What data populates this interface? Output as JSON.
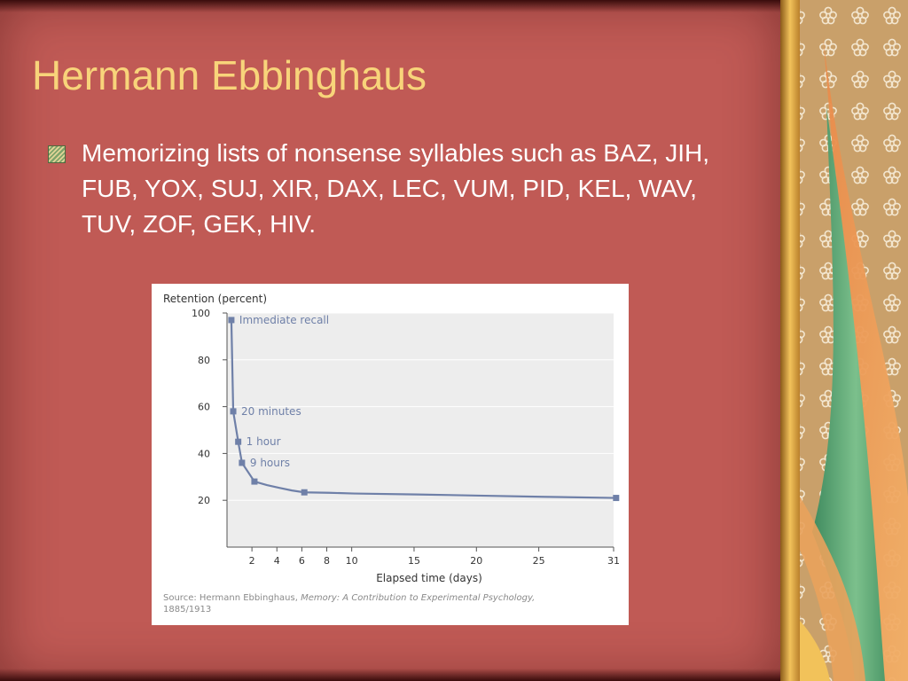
{
  "slide": {
    "title": "Hermann Ebbinghaus",
    "bullet": "Memorizing lists of nonsense syllables such as BAZ, JIH, FUB, YOX, SUJ, XIR, DAX, LEC, VUM, PID, KEL, WAV, TUV, ZOF, GEK, HIV.",
    "bullet_icon": "striped-square-bullet-icon"
  },
  "colors": {
    "background": "#c05a55",
    "title": "#f8d47a",
    "text": "#ffffff",
    "curve": "#6f80a8",
    "plot_area": "#ededed"
  },
  "chart_data": {
    "type": "line",
    "title": "",
    "ylabel": "Retention (percent)",
    "xlabel": "Elapsed time (days)",
    "xlim": [
      0,
      31
    ],
    "ylim": [
      0,
      100
    ],
    "x_ticks": [
      2,
      4,
      6,
      8,
      10,
      15,
      20,
      25,
      31
    ],
    "y_ticks": [
      100,
      80,
      60,
      40,
      20
    ],
    "grid": true,
    "series": [
      {
        "x": [
          0.15,
          0.3,
          0.7,
          1,
          2,
          3,
          4,
          5,
          6,
          8,
          10,
          15,
          20,
          25,
          31
        ],
        "y": [
          97,
          58,
          45,
          36,
          28,
          26.5,
          25.3,
          24.2,
          23.4,
          23.2,
          22.9,
          22.5,
          22,
          21.5,
          21
        ]
      }
    ],
    "markers": [
      {
        "x": 0.15,
        "y": 97,
        "label": "Immediate recall"
      },
      {
        "x": 0.3,
        "y": 58,
        "label": "20 minutes"
      },
      {
        "x": 0.7,
        "y": 45,
        "label": "1 hour"
      },
      {
        "x": 1,
        "y": 36,
        "label": "9 hours"
      },
      {
        "x": 2,
        "y": 28,
        "label": ""
      },
      {
        "x": 6,
        "y": 23.4,
        "label": ""
      },
      {
        "x": 31,
        "y": 21,
        "label": ""
      }
    ],
    "source": {
      "prefix": "Source: Hermann Ebbinghaus, ",
      "work": "Memory: A Contribution to Experimental Psychology,",
      "years": "1885/1913"
    }
  }
}
